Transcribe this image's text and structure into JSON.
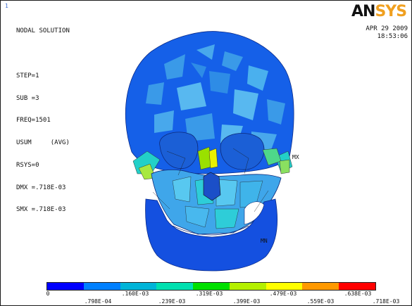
{
  "window": {
    "corner_number": "1"
  },
  "info": {
    "lines": [
      "NODAL SOLUTION",
      "",
      "STEP=1",
      "SUB =3",
      "FREQ=1501",
      "USUM     (AVG)",
      "RSYS=0",
      "DMX =.718E-03",
      "SMX =.718E-03"
    ]
  },
  "logo": {
    "an": "AN",
    "sys": "SYS"
  },
  "stamp": {
    "date": "APR 29 2009",
    "time": "18:53:06"
  },
  "markers": {
    "max": "MX",
    "min": "MN"
  },
  "legend": {
    "colors": [
      "#0000ff",
      "#0080ff",
      "#00b4d8",
      "#00e0b0",
      "#00e000",
      "#b4f000",
      "#ffff00",
      "#ff9900",
      "#ff0000"
    ],
    "top_labels": [
      "0",
      ".160E-03",
      ".319E-03",
      ".479E-03",
      ".638E-03"
    ],
    "bottom_labels": [
      ".798E-04",
      ".239E-03",
      ".399E-03",
      ".559E-03",
      ".718E-03"
    ]
  }
}
